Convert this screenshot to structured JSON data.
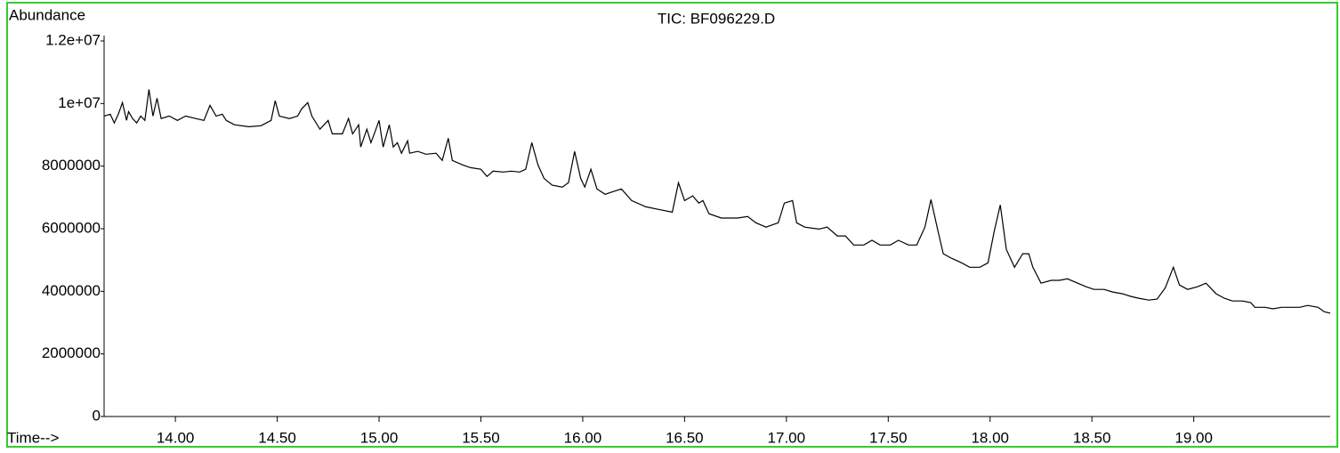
{
  "chart_data": {
    "type": "line",
    "title": "TIC: BF096229.D",
    "y_label": "Abundance",
    "x_label": "Time-->",
    "color": "#000000",
    "xlim": [
      13.65,
      19.67
    ],
    "ylim": [
      0,
      12000000
    ],
    "xticks": [
      {
        "value": 14,
        "label": "14.00"
      },
      {
        "value": 14.5,
        "label": "14.50"
      },
      {
        "value": 15,
        "label": "15.00"
      },
      {
        "value": 15.5,
        "label": "15.50"
      },
      {
        "value": 16,
        "label": "16.00"
      },
      {
        "value": 16.5,
        "label": "16.50"
      },
      {
        "value": 17,
        "label": "17.00"
      },
      {
        "value": 17.5,
        "label": "17.50"
      },
      {
        "value": 18,
        "label": "18.00"
      },
      {
        "value": 18.5,
        "label": "18.50"
      },
      {
        "value": 19,
        "label": "19.00"
      }
    ],
    "yticks": [
      0,
      2000000,
      4000000,
      6000000,
      8000000,
      {
        "value": 10000000,
        "label": "1e+07"
      },
      {
        "value": 12000000,
        "label": "1.2e+07"
      }
    ],
    "x": [
      13.65,
      13.68,
      13.7,
      13.72,
      13.74,
      13.76,
      13.77,
      13.79,
      13.81,
      13.83,
      13.85,
      13.87,
      13.89,
      13.91,
      13.93,
      13.97,
      14.01,
      14.05,
      14.1,
      14.14,
      14.17,
      14.2,
      14.23,
      14.25,
      14.29,
      14.36,
      14.42,
      14.47,
      14.49,
      14.51,
      14.56,
      14.6,
      14.62,
      14.65,
      14.67,
      14.71,
      14.75,
      14.77,
      14.82,
      14.85,
      14.87,
      14.9,
      14.91,
      14.94,
      14.96,
      14.98,
      15.0,
      15.02,
      15.05,
      15.07,
      15.09,
      15.11,
      15.14,
      15.15,
      15.19,
      15.23,
      15.28,
      15.31,
      15.34,
      15.36,
      15.41,
      15.45,
      15.5,
      15.53,
      15.56,
      15.61,
      15.65,
      15.69,
      15.72,
      15.75,
      15.78,
      15.81,
      15.85,
      15.9,
      15.93,
      15.96,
      15.99,
      16.01,
      16.04,
      16.07,
      16.11,
      16.15,
      16.19,
      16.24,
      16.31,
      16.37,
      16.44,
      16.47,
      16.5,
      16.54,
      16.57,
      16.59,
      16.62,
      16.68,
      16.72,
      16.76,
      16.81,
      16.85,
      16.9,
      16.96,
      16.99,
      17.03,
      17.05,
      17.09,
      17.16,
      17.2,
      17.25,
      17.29,
      17.33,
      17.38,
      17.42,
      17.46,
      17.51,
      17.55,
      17.6,
      17.64,
      17.68,
      17.71,
      17.74,
      17.77,
      17.81,
      17.86,
      17.9,
      17.95,
      17.99,
      18.02,
      18.05,
      18.08,
      18.12,
      18.16,
      18.19,
      18.21,
      18.25,
      18.3,
      18.34,
      18.38,
      18.43,
      18.47,
      18.51,
      18.56,
      18.6,
      18.65,
      18.69,
      18.73,
      18.78,
      18.82,
      18.86,
      18.9,
      18.93,
      18.97,
      19.02,
      19.06,
      19.11,
      19.15,
      19.19,
      19.24,
      19.28,
      19.3,
      19.35,
      19.39,
      19.43,
      19.48,
      19.52,
      19.56,
      19.61,
      19.64,
      19.67
    ],
    "values": [
      9600000,
      9660000,
      9380000,
      9660000,
      10030000,
      9460000,
      9740000,
      9520000,
      9380000,
      9600000,
      9460000,
      10450000,
      9600000,
      10170000,
      9520000,
      9600000,
      9460000,
      9600000,
      9520000,
      9460000,
      9940000,
      9600000,
      9660000,
      9460000,
      9320000,
      9260000,
      9290000,
      9460000,
      10090000,
      9600000,
      9520000,
      9600000,
      9830000,
      10030000,
      9600000,
      9180000,
      9460000,
      9030000,
      9030000,
      9520000,
      9030000,
      9320000,
      8610000,
      9180000,
      8750000,
      9090000,
      9460000,
      8610000,
      9320000,
      8610000,
      8750000,
      8410000,
      8810000,
      8410000,
      8470000,
      8380000,
      8410000,
      8180000,
      8890000,
      8180000,
      8040000,
      7950000,
      7900000,
      7670000,
      7840000,
      7810000,
      7840000,
      7810000,
      7900000,
      8750000,
      8040000,
      7610000,
      7390000,
      7330000,
      7470000,
      8470000,
      7610000,
      7330000,
      7900000,
      7270000,
      7100000,
      7190000,
      7270000,
      6900000,
      6700000,
      6620000,
      6530000,
      7470000,
      6900000,
      7050000,
      6820000,
      6900000,
      6480000,
      6340000,
      6340000,
      6340000,
      6390000,
      6190000,
      6050000,
      6190000,
      6820000,
      6900000,
      6190000,
      6050000,
      5990000,
      6050000,
      5770000,
      5770000,
      5480000,
      5480000,
      5630000,
      5480000,
      5480000,
      5630000,
      5480000,
      5480000,
      6050000,
      6930000,
      6050000,
      5200000,
      5060000,
      4910000,
      4770000,
      4770000,
      4910000,
      5910000,
      6760000,
      5340000,
      4770000,
      5200000,
      5200000,
      4770000,
      4260000,
      4350000,
      4350000,
      4400000,
      4260000,
      4150000,
      4060000,
      4060000,
      3980000,
      3920000,
      3840000,
      3780000,
      3720000,
      3750000,
      4110000,
      4770000,
      4200000,
      4060000,
      4150000,
      4260000,
      3920000,
      3780000,
      3690000,
      3690000,
      3640000,
      3490000,
      3490000,
      3440000,
      3490000,
      3490000,
      3490000,
      3550000,
      3490000,
      3350000,
      3300000
    ]
  }
}
